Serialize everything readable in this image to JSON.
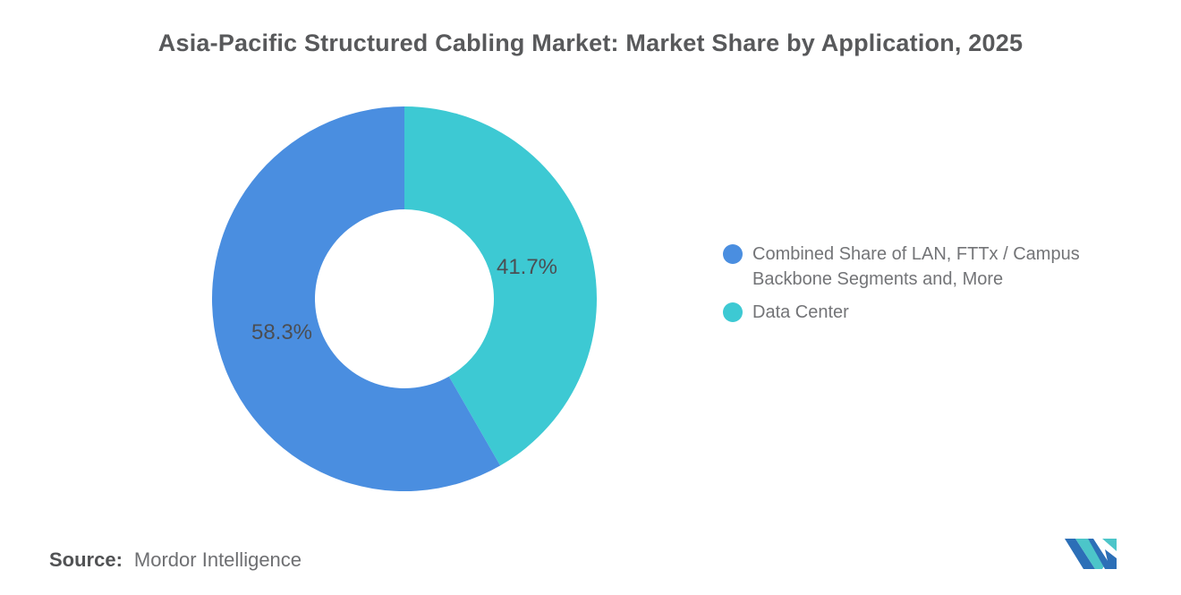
{
  "header": {
    "title": "Asia-Pacific Structured Cabling Market: Market Share by Application, 2025"
  },
  "chart_data": {
    "type": "pie",
    "subtype": "donut",
    "title": "Asia-Pacific Structured Cabling Market: Market Share by Application, 2025",
    "units": "%",
    "inner_radius_ratio": 0.465,
    "outer_radius_px": 215,
    "start_angle_deg": 0,
    "rotation": "clockwise",
    "first_drawn_slice": "Data Center",
    "legend_position": "right",
    "data_label_color": "#4B4E53",
    "slices": [
      {
        "name": "Combined Share of LAN, FTTx / Campus Backbone Segments and, More",
        "value": 58.3,
        "label": "58.3%",
        "color": "#4A8EE0"
      },
      {
        "name": "Data Center",
        "value": 41.7,
        "label": "41.7%",
        "color": "#3DC9D3"
      }
    ]
  },
  "footer": {
    "source_prefix": "Source:",
    "source_value": "Mordor Intelligence"
  },
  "logo": {
    "name": "mordor-intelligence-logo",
    "blue": "#2C6FB7",
    "teal": "#4CC5C9"
  }
}
